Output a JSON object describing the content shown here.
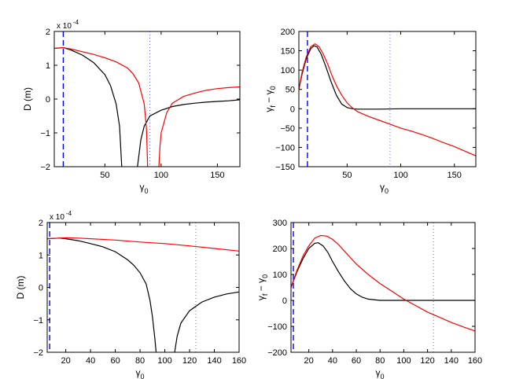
{
  "colors": {
    "black": "#000000",
    "red": "#ff0000",
    "blue": "#0000ff",
    "dotted": "#6b6bff"
  },
  "chart_data": [
    {
      "type": "line",
      "xlabel_sym": "γ",
      "xlabel_sub": "0",
      "ylabel": "D (m)",
      "multiplier_base": "x 10",
      "multiplier_exp": "-4",
      "xlim": [
        5,
        170
      ],
      "ylim": [
        -2,
        2
      ],
      "xticks": [
        50,
        100,
        150
      ],
      "xtick_labels": [
        "50",
        "100",
        "150"
      ],
      "yticks": [
        -2,
        -1,
        0,
        1,
        2
      ],
      "ytick_labels": [
        "−2",
        "−1",
        "0",
        "1",
        "2"
      ],
      "vlines": [
        {
          "x": 13,
          "style": "dashed"
        },
        {
          "x": 90,
          "style": "dotted"
        }
      ],
      "series": [
        {
          "color": "black",
          "segments": [
            [
              [
                5,
                1.5
              ],
              [
                13,
                1.52
              ],
              [
                20,
                1.45
              ],
              [
                30,
                1.3
              ],
              [
                40,
                1.08
              ],
              [
                50,
                0.72
              ],
              [
                55,
                0.4
              ],
              [
                60,
                -0.15
              ],
              [
                63,
                -0.8
              ],
              [
                65,
                -2.0
              ]
            ],
            [
              [
                79,
                -2.0
              ],
              [
                82,
                -1.2
              ],
              [
                85,
                -0.8
              ],
              [
                90,
                -0.5
              ],
              [
                100,
                -0.33
              ],
              [
                110,
                -0.22
              ],
              [
                120,
                -0.16
              ],
              [
                130,
                -0.12
              ],
              [
                140,
                -0.09
              ],
              [
                150,
                -0.07
              ],
              [
                160,
                -0.05
              ],
              [
                170,
                -0.02
              ]
            ]
          ]
        },
        {
          "color": "red",
          "segments": [
            [
              [
                5,
                1.5
              ],
              [
                13,
                1.52
              ],
              [
                20,
                1.48
              ],
              [
                30,
                1.4
              ],
              [
                40,
                1.32
              ],
              [
                50,
                1.22
              ],
              [
                60,
                1.1
              ],
              [
                70,
                0.92
              ],
              [
                75,
                0.75
              ],
              [
                80,
                0.48
              ],
              [
                85,
                -0.15
              ],
              [
                87,
                -0.9
              ],
              [
                88,
                -2.0
              ]
            ],
            [
              [
                98,
                -2.0
              ],
              [
                99,
                -1.4
              ],
              [
                100,
                -1.0
              ],
              [
                105,
                -0.4
              ],
              [
                110,
                -0.12
              ],
              [
                120,
                0.08
              ],
              [
                130,
                0.18
              ],
              [
                140,
                0.26
              ],
              [
                150,
                0.31
              ],
              [
                160,
                0.34
              ],
              [
                170,
                0.36
              ]
            ]
          ]
        }
      ]
    },
    {
      "type": "line",
      "xlabel_sym": "γ",
      "xlabel_sub": "0",
      "ylabel_sym1": "γ",
      "ylabel_sub1": "f",
      "ylabel_mid": " − ",
      "ylabel_sym2": "γ",
      "ylabel_sub2": "0",
      "xlim": [
        5,
        170
      ],
      "ylim": [
        -150,
        200
      ],
      "xticks": [
        50,
        100,
        150
      ],
      "xtick_labels": [
        "50",
        "100",
        "150"
      ],
      "yticks": [
        -150,
        -100,
        -50,
        0,
        50,
        100,
        150,
        200
      ],
      "ytick_labels": [
        "−150",
        "−100",
        "−50",
        "0",
        "50",
        "100",
        "150",
        "200"
      ],
      "vlines": [
        {
          "x": 13,
          "style": "dashed"
        },
        {
          "x": 90,
          "style": "dotted"
        }
      ],
      "series": [
        {
          "color": "black",
          "segments": [
            [
              [
                5,
                50
              ],
              [
                8,
                90
              ],
              [
                12,
                130
              ],
              [
                16,
                155
              ],
              [
                19,
                163
              ],
              [
                22,
                160
              ],
              [
                26,
                140
              ],
              [
                30,
                110
              ],
              [
                35,
                70
              ],
              [
                40,
                35
              ],
              [
                45,
                12
              ],
              [
                50,
                3
              ],
              [
                55,
                0
              ],
              [
                60,
                -1
              ],
              [
                80,
                -1
              ],
              [
                100,
                0
              ],
              [
                130,
                0
              ],
              [
                170,
                0
              ]
            ]
          ]
        },
        {
          "color": "red",
          "segments": [
            [
              [
                5,
                50
              ],
              [
                8,
                95
              ],
              [
                12,
                135
              ],
              [
                16,
                160
              ],
              [
                20,
                168
              ],
              [
                24,
                160
              ],
              [
                28,
                140
              ],
              [
                32,
                115
              ],
              [
                36,
                85
              ],
              [
                40,
                60
              ],
              [
                45,
                35
              ],
              [
                50,
                15
              ],
              [
                55,
                2
              ],
              [
                60,
                -8
              ],
              [
                70,
                -20
              ],
              [
                80,
                -30
              ],
              [
                90,
                -40
              ],
              [
                100,
                -50
              ],
              [
                110,
                -58
              ],
              [
                120,
                -67
              ],
              [
                130,
                -77
              ],
              [
                140,
                -88
              ],
              [
                150,
                -98
              ],
              [
                160,
                -110
              ],
              [
                170,
                -122
              ]
            ]
          ]
        }
      ]
    },
    {
      "type": "line",
      "xlabel_sym": "γ",
      "xlabel_sub": "0",
      "ylabel": "D (m)",
      "multiplier_base": "x 10",
      "multiplier_exp": "-4",
      "xlim": [
        5,
        160
      ],
      "ylim": [
        -2,
        2
      ],
      "xticks": [
        20,
        40,
        60,
        80,
        100,
        120,
        140,
        160
      ],
      "xtick_labels": [
        "20",
        "40",
        "60",
        "80",
        "100",
        "120",
        "140",
        "160"
      ],
      "yticks": [
        -2,
        -1,
        0,
        1,
        2
      ],
      "ytick_labels": [
        "−2",
        "−1",
        "0",
        "1",
        "2"
      ],
      "vlines": [
        {
          "x": 7,
          "style": "dashed"
        },
        {
          "x": 125,
          "style": "dotted"
        }
      ],
      "series": [
        {
          "color": "black",
          "segments": [
            [
              [
                5,
                1.5
              ],
              [
                10,
                1.51
              ],
              [
                15,
                1.52
              ],
              [
                20,
                1.5
              ],
              [
                30,
                1.44
              ],
              [
                40,
                1.35
              ],
              [
                50,
                1.25
              ],
              [
                60,
                1.1
              ],
              [
                70,
                0.85
              ],
              [
                75,
                0.68
              ],
              [
                80,
                0.45
              ],
              [
                85,
                0.1
              ],
              [
                88,
                -0.4
              ],
              [
                90,
                -0.9
              ],
              [
                92,
                -1.6
              ],
              [
                93,
                -2.0
              ]
            ],
            [
              [
                108,
                -2.0
              ],
              [
                110,
                -1.5
              ],
              [
                113,
                -1.1
              ],
              [
                120,
                -0.72
              ],
              [
                130,
                -0.45
              ],
              [
                140,
                -0.3
              ],
              [
                150,
                -0.2
              ],
              [
                160,
                -0.14
              ]
            ]
          ]
        },
        {
          "color": "red",
          "segments": [
            [
              [
                5,
                1.5
              ],
              [
                15,
                1.52
              ],
              [
                20,
                1.53
              ],
              [
                30,
                1.52
              ],
              [
                40,
                1.5
              ],
              [
                60,
                1.46
              ],
              [
                80,
                1.4
              ],
              [
                100,
                1.35
              ],
              [
                120,
                1.28
              ],
              [
                140,
                1.2
              ],
              [
                160,
                1.12
              ]
            ]
          ]
        }
      ]
    },
    {
      "type": "line",
      "xlabel_sym": "γ",
      "xlabel_sub": "0",
      "ylabel_sym1": "γ",
      "ylabel_sub1": "f",
      "ylabel_mid": " − ",
      "ylabel_sym2": "γ",
      "ylabel_sub2": "0",
      "xlim": [
        5,
        160
      ],
      "ylim": [
        -200,
        300
      ],
      "xticks": [
        20,
        40,
        60,
        80,
        100,
        120,
        140,
        160
      ],
      "xtick_labels": [
        "20",
        "40",
        "60",
        "80",
        "100",
        "120",
        "140",
        "160"
      ],
      "yticks": [
        -200,
        -100,
        0,
        100,
        200,
        300
      ],
      "ytick_labels": [
        "−200",
        "−100",
        "0",
        "100",
        "200",
        "300"
      ],
      "vlines": [
        {
          "x": 7,
          "style": "dashed"
        },
        {
          "x": 125,
          "style": "dotted"
        }
      ],
      "series": [
        {
          "color": "black",
          "segments": [
            [
              [
                5,
                50
              ],
              [
                10,
                110
              ],
              [
                15,
                160
              ],
              [
                20,
                200
              ],
              [
                25,
                220
              ],
              [
                28,
                222
              ],
              [
                32,
                210
              ],
              [
                36,
                185
              ],
              [
                40,
                150
              ],
              [
                45,
                110
              ],
              [
                50,
                75
              ],
              [
                55,
                45
              ],
              [
                60,
                25
              ],
              [
                65,
                12
              ],
              [
                70,
                5
              ],
              [
                80,
                0
              ],
              [
                100,
                0
              ],
              [
                130,
                0
              ],
              [
                160,
                0
              ]
            ]
          ]
        },
        {
          "color": "red",
          "segments": [
            [
              [
                5,
                50
              ],
              [
                10,
                115
              ],
              [
                15,
                170
              ],
              [
                20,
                210
              ],
              [
                25,
                240
              ],
              [
                30,
                250
              ],
              [
                35,
                248
              ],
              [
                40,
                235
              ],
              [
                45,
                215
              ],
              [
                50,
                190
              ],
              [
                55,
                165
              ],
              [
                60,
                140
              ],
              [
                70,
                100
              ],
              [
                80,
                65
              ],
              [
                90,
                35
              ],
              [
                100,
                5
              ],
              [
                110,
                -20
              ],
              [
                120,
                -45
              ],
              [
                130,
                -65
              ],
              [
                140,
                -85
              ],
              [
                150,
                -102
              ],
              [
                160,
                -118
              ]
            ]
          ]
        }
      ]
    }
  ]
}
